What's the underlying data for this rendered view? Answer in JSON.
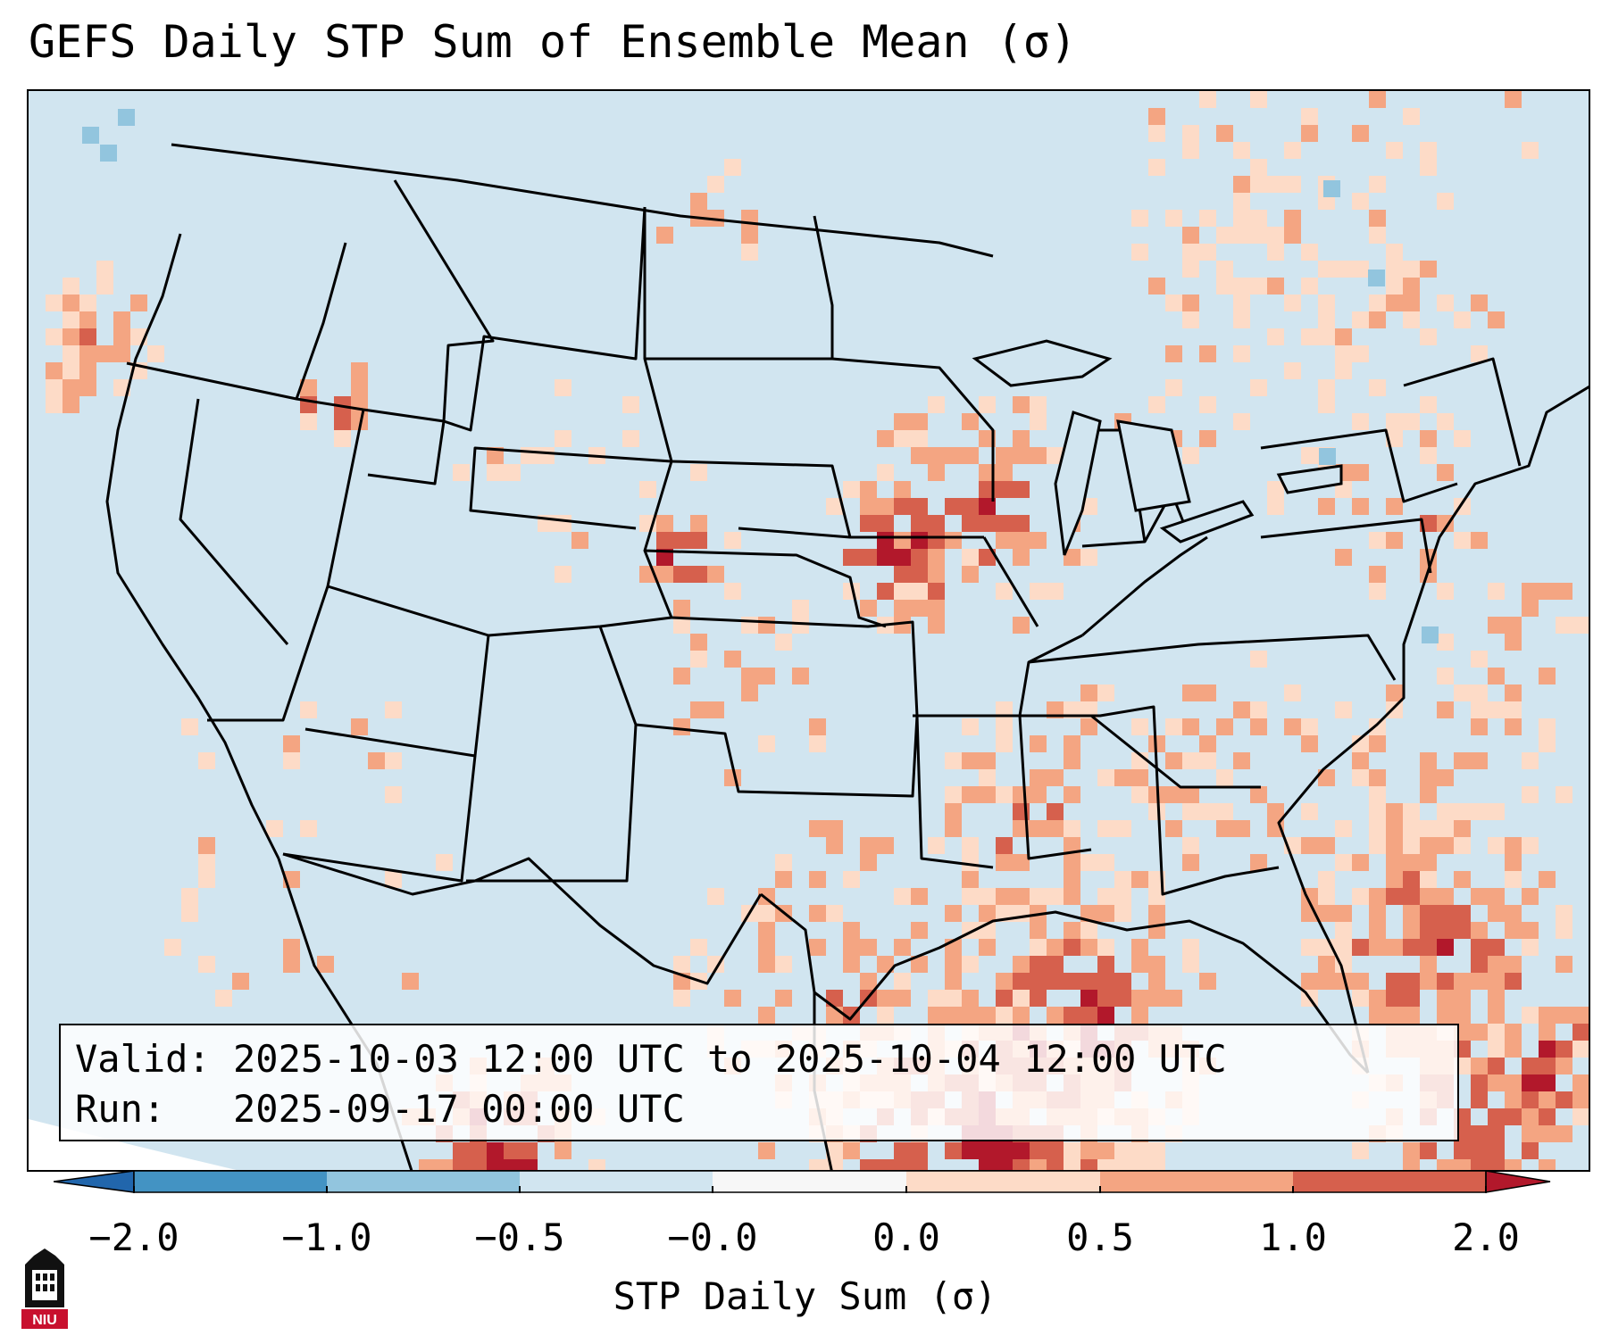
{
  "title": "GEFS Daily STP Sum of Ensemble Mean (σ)",
  "info": {
    "valid_label": "Valid:",
    "valid_value": "2025-10-03 12:00 UTC to 2025-10-04 12:00 UTC",
    "run_label": "Run:",
    "run_value": "2025-09-17 00:00 UTC"
  },
  "colorbar": {
    "label": "STP Daily Sum (σ)",
    "ticks": [
      "−2.0",
      "−1.0",
      "−0.5",
      "−0.0",
      "0.0",
      "0.5",
      "1.0",
      "2.0"
    ],
    "colors": {
      "below_min": "#2166ac",
      "bins": [
        "#4393c3",
        "#92c5de",
        "#d1e5f0",
        "#f7f7f7",
        "#fddbc7",
        "#f4a582",
        "#d6604d"
      ],
      "above_max": "#b2182b"
    }
  },
  "map": {
    "projection": "Lambert conformal",
    "region": "Contiguous United States, southern Canada, northern Mexico, Gulf of Mexico",
    "features": [
      "state-borders",
      "country-borders",
      "coastlines",
      "great-lakes"
    ]
  },
  "logo": {
    "text": "NIU",
    "color": "#c8102e"
  }
}
